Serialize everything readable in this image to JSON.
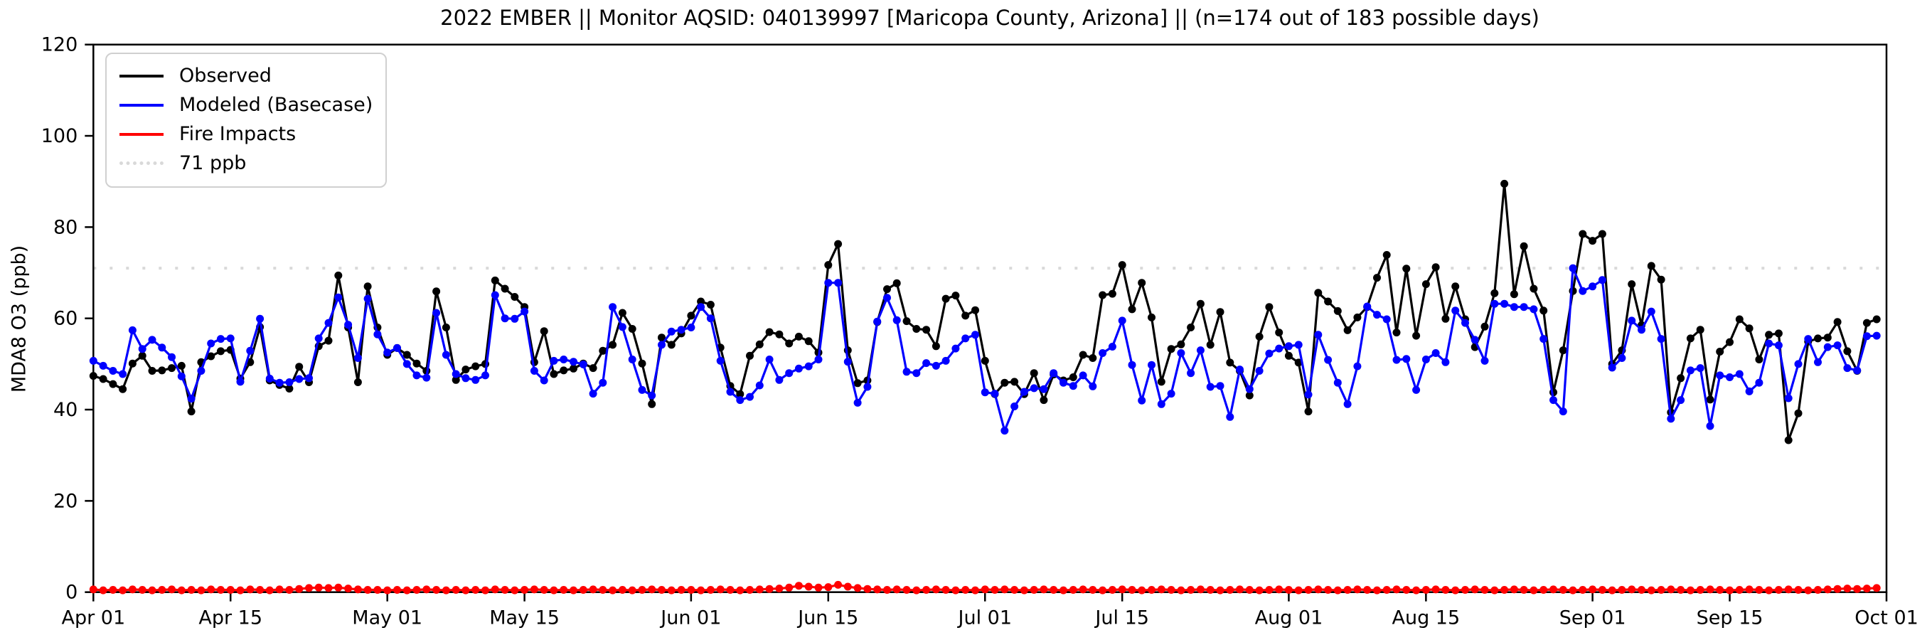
{
  "chart_data": {
    "type": "line",
    "title": "2022 EMBER || Monitor AQSID: 040139997 [Maricopa County, Arizona] || (n=174 out of 183 possible days)",
    "ylabel": "MDA8 O3 (ppb)",
    "xlabel": "",
    "ylim": [
      0,
      120
    ],
    "yticks": [
      0,
      20,
      40,
      60,
      80,
      100,
      120
    ],
    "x_start_date": "Apr 01 2022",
    "x_end_date": "Oct 01 2022",
    "n_days": 183,
    "grid": false,
    "legend_position": "upper-left",
    "threshold": {
      "value": 71,
      "label": "71 ppb",
      "color": "#d9d9d9",
      "style": "dotted"
    },
    "xticks": [
      {
        "day": 1,
        "label": "Apr 01"
      },
      {
        "day": 15,
        "label": "Apr 15"
      },
      {
        "day": 31,
        "label": "May 01"
      },
      {
        "day": 45,
        "label": "May 15"
      },
      {
        "day": 62,
        "label": "Jun 01"
      },
      {
        "day": 76,
        "label": "Jun 15"
      },
      {
        "day": 92,
        "label": "Jul 01"
      },
      {
        "day": 106,
        "label": "Jul 15"
      },
      {
        "day": 123,
        "label": "Aug 01"
      },
      {
        "day": 137,
        "label": "Aug 15"
      },
      {
        "day": 154,
        "label": "Sep 01"
      },
      {
        "day": 168,
        "label": "Sep 15"
      },
      {
        "day": 184,
        "label": "Oct 01"
      }
    ],
    "legend": [
      {
        "label": "Observed",
        "color": "#000000",
        "style": "solid"
      },
      {
        "label": "Modeled (Basecase)",
        "color": "#0000ff",
        "style": "solid"
      },
      {
        "label": "Fire Impacts",
        "color": "#ff0000",
        "style": "solid"
      },
      {
        "label": "71 ppb",
        "color": "#d9d9d9",
        "style": "dotted"
      }
    ],
    "series": [
      {
        "name": "Observed",
        "color": "#000000",
        "marker": "circle",
        "values": [
          47.4,
          46.7,
          45.6,
          44.5,
          50.1,
          51.8,
          48.5,
          48.6,
          49.1,
          49.6,
          39.6,
          50.4,
          51.7,
          52.8,
          53.1,
          46.8,
          50.4,
          58.1,
          46.4,
          45.4,
          44.6,
          49.4,
          46.0,
          53.9,
          55.1,
          69.4,
          58.0,
          46.0,
          67.0,
          58.0,
          52.0,
          53.5,
          52.0,
          50.1,
          48.5,
          65.9,
          58.0,
          46.5,
          48.8,
          49.5,
          50.0,
          68.3,
          66.5,
          64.7,
          62.5,
          50.4,
          57.2,
          47.8,
          48.6,
          49.0,
          50.1,
          49.1,
          52.9,
          54.2,
          61.2,
          57.7,
          50.1,
          41.2,
          55.8,
          54.2,
          56.7,
          60.6,
          63.7,
          63.0,
          53.6,
          45.2,
          43.4,
          51.8,
          54.3,
          57.0,
          56.5,
          54.5,
          56.0,
          55.0,
          52.5,
          71.7,
          76.3,
          53.0,
          45.8,
          46.4,
          59.2,
          66.4,
          67.7,
          59.4,
          57.7,
          57.5,
          53.9,
          64.3,
          65.0,
          60.6,
          61.8,
          50.7,
          43.4,
          45.9,
          46.1,
          43.4,
          48.0,
          42.1,
          47.7,
          46.4,
          47.1,
          52.0,
          51.3,
          65.1,
          65.4,
          71.7,
          62.0,
          67.8,
          60.2,
          46.1,
          53.3,
          54.3,
          58.0,
          63.2,
          54.2,
          61.4,
          50.3,
          48.5,
          43.1,
          56.0,
          62.5,
          56.9,
          51.8,
          50.3,
          39.6,
          65.6,
          63.7,
          61.6,
          57.4,
          60.2,
          62.5,
          68.9,
          73.9,
          56.9,
          70.9,
          56.2,
          67.5,
          71.2,
          59.9,
          67.0,
          59.8,
          53.7,
          58.2,
          65.5,
          89.5,
          65.3,
          75.8,
          66.5,
          61.7,
          43.8,
          53.0,
          66.0,
          78.5,
          77.0,
          78.5,
          50.0,
          53.0,
          67.5,
          58.5,
          71.5,
          68.5,
          39.4,
          46.9,
          55.6,
          57.5,
          42.2,
          52.7,
          54.8,
          59.8,
          57.8,
          51.0,
          56.4,
          56.7,
          33.3,
          39.2,
          54.9,
          55.6,
          55.8,
          59.2,
          52.8,
          48.5,
          59.0,
          59.8
        ]
      },
      {
        "name": "Modeled (Basecase)",
        "color": "#0000ff",
        "marker": "circle",
        "values": [
          50.7,
          49.6,
          48.5,
          47.8,
          57.4,
          53.3,
          55.3,
          53.6,
          51.5,
          47.3,
          42.4,
          48.5,
          54.5,
          55.5,
          55.6,
          46.1,
          52.9,
          59.9,
          46.8,
          45.9,
          46.0,
          46.7,
          46.9,
          55.6,
          59.0,
          64.6,
          58.6,
          51.3,
          64.3,
          56.5,
          52.5,
          53.5,
          50.0,
          47.5,
          47.0,
          61.2,
          52.0,
          47.8,
          46.9,
          46.5,
          47.5,
          65.1,
          60.0,
          59.9,
          61.5,
          48.5,
          46.4,
          50.7,
          51.0,
          50.5,
          49.9,
          43.5,
          45.9,
          62.5,
          58.1,
          51.0,
          44.3,
          43.1,
          54.2,
          57.1,
          57.5,
          58.0,
          62.5,
          60.0,
          50.7,
          43.9,
          42.1,
          42.8,
          45.3,
          51.0,
          46.5,
          48.0,
          49.0,
          49.5,
          51.0,
          67.8,
          67.8,
          50.5,
          41.5,
          45.0,
          59.3,
          64.5,
          59.6,
          48.3,
          48.0,
          50.2,
          49.6,
          50.7,
          53.4,
          55.6,
          56.4,
          43.8,
          43.5,
          35.4,
          40.7,
          43.9,
          44.7,
          44.5,
          48.0,
          45.9,
          45.2,
          47.5,
          45.1,
          52.4,
          53.8,
          59.5,
          49.8,
          42.0,
          49.8,
          41.2,
          43.5,
          52.4,
          48.0,
          53.0,
          45.0,
          45.2,
          38.4,
          48.8,
          44.5,
          48.5,
          52.3,
          53.4,
          53.9,
          54.2,
          43.3,
          56.4,
          50.9,
          45.9,
          41.2,
          49.5,
          62.6,
          60.8,
          59.8,
          50.9,
          51.1,
          44.3,
          51.0,
          52.4,
          50.4,
          61.7,
          59.0,
          55.3,
          50.7,
          63.2,
          63.2,
          62.5,
          62.5,
          62.0,
          55.5,
          42.1,
          39.6,
          71.0,
          66.0,
          67.0,
          68.4,
          49.2,
          51.3,
          59.5,
          57.5,
          61.5,
          55.5,
          38.0,
          42.1,
          48.6,
          49.1,
          36.4,
          47.5,
          47.1,
          47.8,
          44.0,
          45.9,
          54.5,
          54.1,
          42.5,
          50.0,
          55.5,
          50.4,
          53.7,
          54.1,
          49.1,
          48.6,
          56.1,
          56.2
        ]
      },
      {
        "name": "Fire Impacts",
        "color": "#ff0000",
        "marker": "circle",
        "values": [
          0.6,
          0.4,
          0.5,
          0.4,
          0.6,
          0.5,
          0.4,
          0.5,
          0.6,
          0.4,
          0.5,
          0.4,
          0.6,
          0.5,
          0.5,
          0.4,
          0.6,
          0.5,
          0.4,
          0.6,
          0.5,
          0.7,
          0.9,
          1.0,
          0.9,
          1.0,
          0.8,
          0.6,
          0.5,
          0.5,
          0.4,
          0.5,
          0.4,
          0.5,
          0.6,
          0.5,
          0.4,
          0.5,
          0.4,
          0.5,
          0.4,
          0.6,
          0.5,
          0.4,
          0.5,
          0.6,
          0.5,
          0.4,
          0.5,
          0.4,
          0.5,
          0.6,
          0.5,
          0.4,
          0.5,
          0.4,
          0.5,
          0.6,
          0.5,
          0.4,
          0.5,
          0.5,
          0.4,
          0.5,
          0.6,
          0.5,
          0.4,
          0.5,
          0.6,
          0.7,
          0.8,
          1.0,
          1.4,
          1.2,
          1.0,
          1.1,
          1.6,
          1.2,
          0.9,
          0.7,
          0.6,
          0.5,
          0.6,
          0.5,
          0.4,
          0.5,
          0.6,
          0.5,
          0.4,
          0.5,
          0.4,
          0.6,
          0.5,
          0.6,
          0.5,
          0.4,
          0.5,
          0.6,
          0.5,
          0.4,
          0.5,
          0.6,
          0.5,
          0.4,
          0.5,
          0.6,
          0.5,
          0.4,
          0.5,
          0.6,
          0.5,
          0.4,
          0.5,
          0.6,
          0.5,
          0.4,
          0.5,
          0.6,
          0.5,
          0.4,
          0.5,
          0.6,
          0.5,
          0.4,
          0.5,
          0.6,
          0.5,
          0.4,
          0.5,
          0.6,
          0.5,
          0.4,
          0.5,
          0.6,
          0.5,
          0.4,
          0.5,
          0.6,
          0.5,
          0.4,
          0.5,
          0.6,
          0.5,
          0.4,
          0.5,
          0.6,
          0.5,
          0.4,
          0.5,
          0.6,
          0.5,
          0.4,
          0.5,
          0.6,
          0.5,
          0.4,
          0.5,
          0.6,
          0.5,
          0.4,
          0.5,
          0.6,
          0.5,
          0.4,
          0.5,
          0.6,
          0.5,
          0.4,
          0.5,
          0.6,
          0.5,
          0.4,
          0.5,
          0.6,
          0.5,
          0.4,
          0.5,
          0.6,
          0.7,
          0.8,
          0.7,
          0.8,
          0.9
        ]
      }
    ]
  }
}
